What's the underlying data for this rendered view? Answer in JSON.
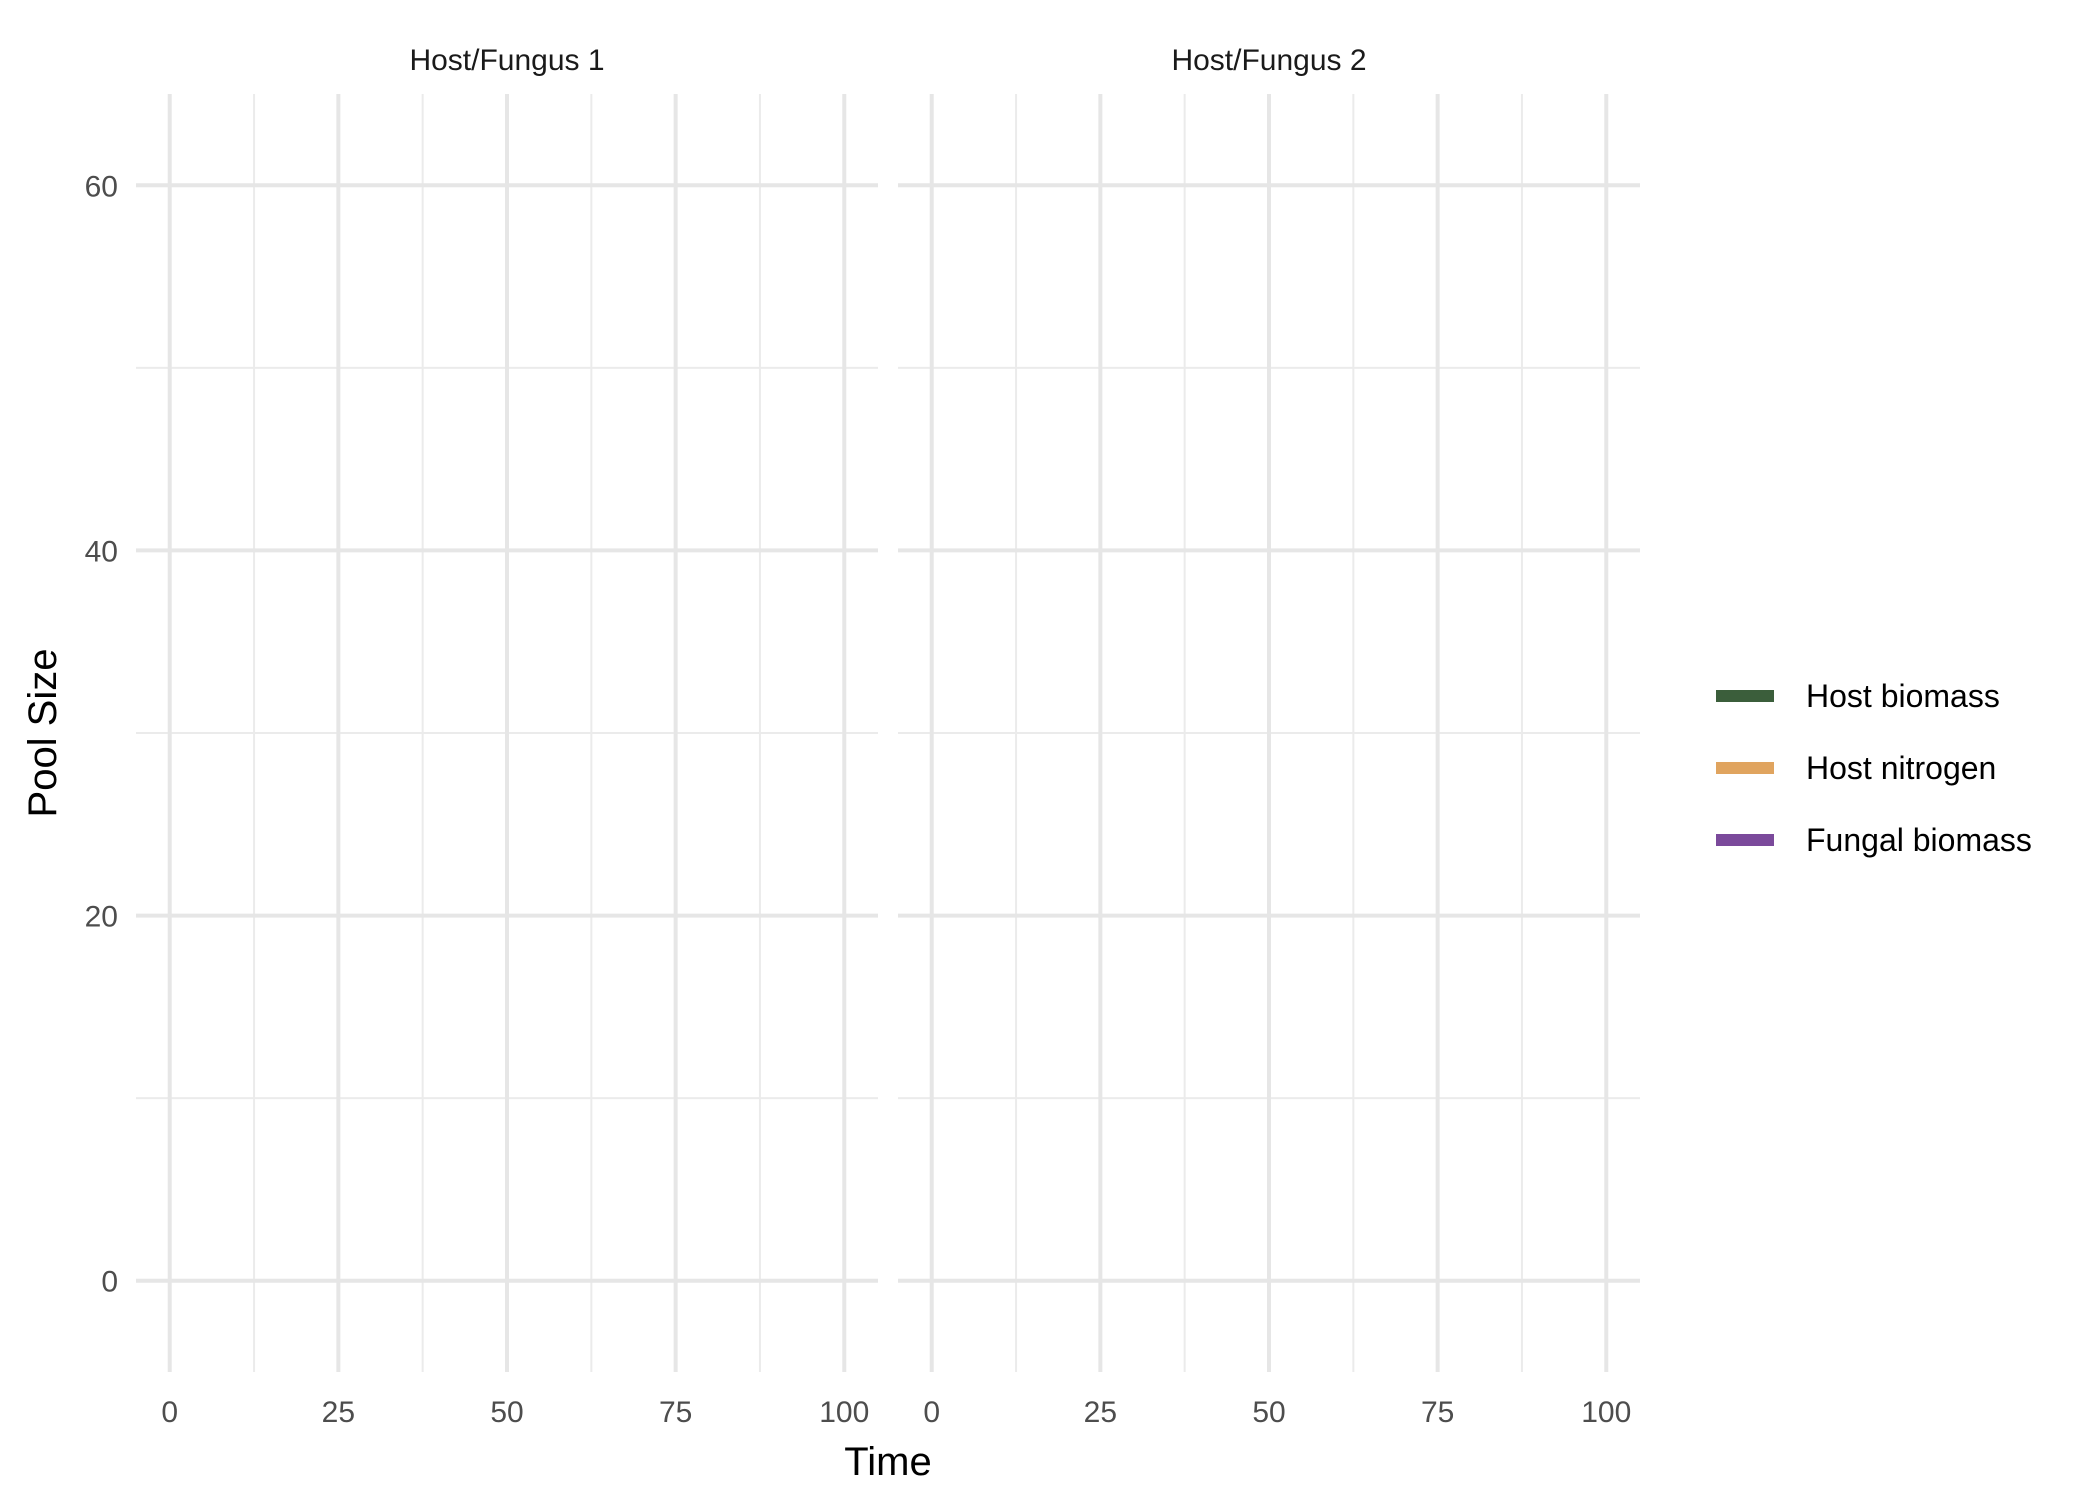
{
  "chart_data": {
    "type": "line",
    "xlabel": "Time",
    "ylabel": "Pool Size",
    "xlim": [
      -5,
      105
    ],
    "ylim": [
      -5,
      65
    ],
    "x_major_ticks": [
      0,
      25,
      50,
      75,
      100
    ],
    "x_minor_ticks": [
      12.5,
      37.5,
      62.5,
      87.5
    ],
    "y_major_ticks": [
      0,
      20,
      40,
      60
    ],
    "y_minor_ticks": [
      10,
      30,
      50
    ],
    "grid": true,
    "legend_position": "right",
    "panels": [
      {
        "title": "Host/Fungus 1"
      },
      {
        "title": "Host/Fungus 2"
      }
    ],
    "series": [
      {
        "name": "Host biomass",
        "color": "#3b5e3b",
        "values": []
      },
      {
        "name": "Host nitrogen",
        "color": "#e0a45f",
        "values": []
      },
      {
        "name": "Fungal biomass",
        "color": "#7b4a9b",
        "values": []
      }
    ]
  }
}
